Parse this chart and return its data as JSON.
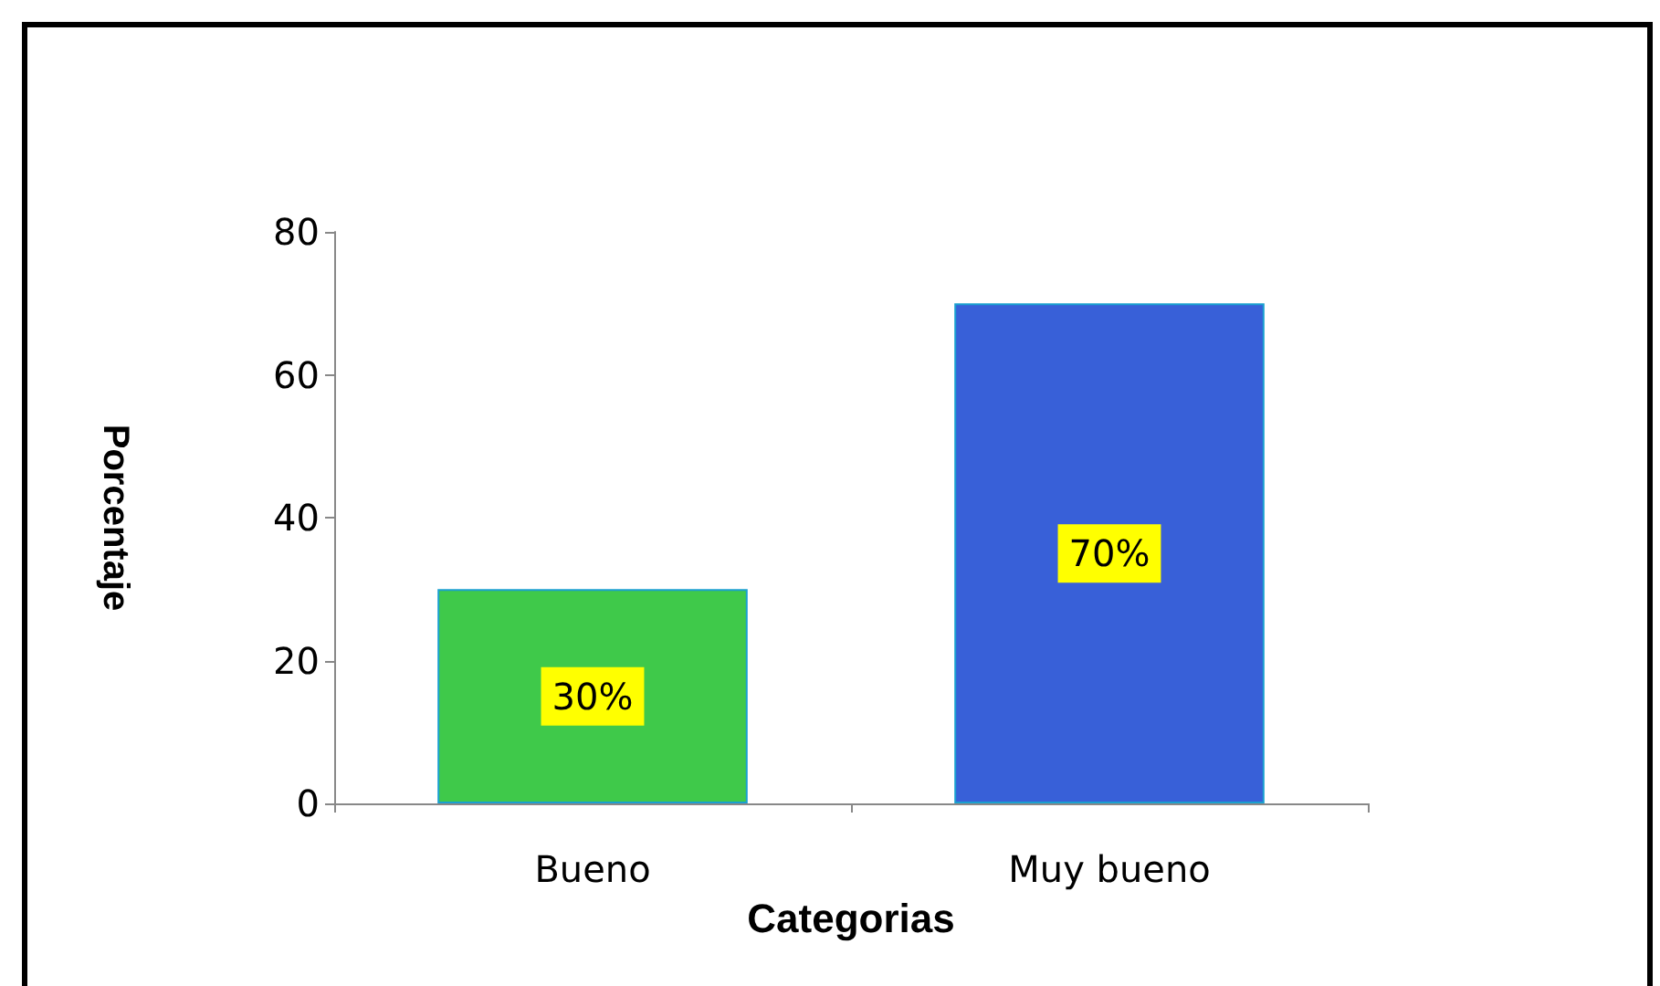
{
  "chart_data": {
    "type": "bar",
    "xlabel": "Categorias",
    "ylabel": "Porcentaje",
    "categories": [
      "Bueno",
      "Muy bueno"
    ],
    "values": [
      30,
      70
    ],
    "colors": [
      "#3fc94a",
      "#3860d8"
    ],
    "value_labels": [
      "30%",
      "70%"
    ],
    "ylim": [
      0,
      80
    ],
    "yticks": [
      0,
      20,
      40,
      60,
      80
    ],
    "grid": false
  }
}
